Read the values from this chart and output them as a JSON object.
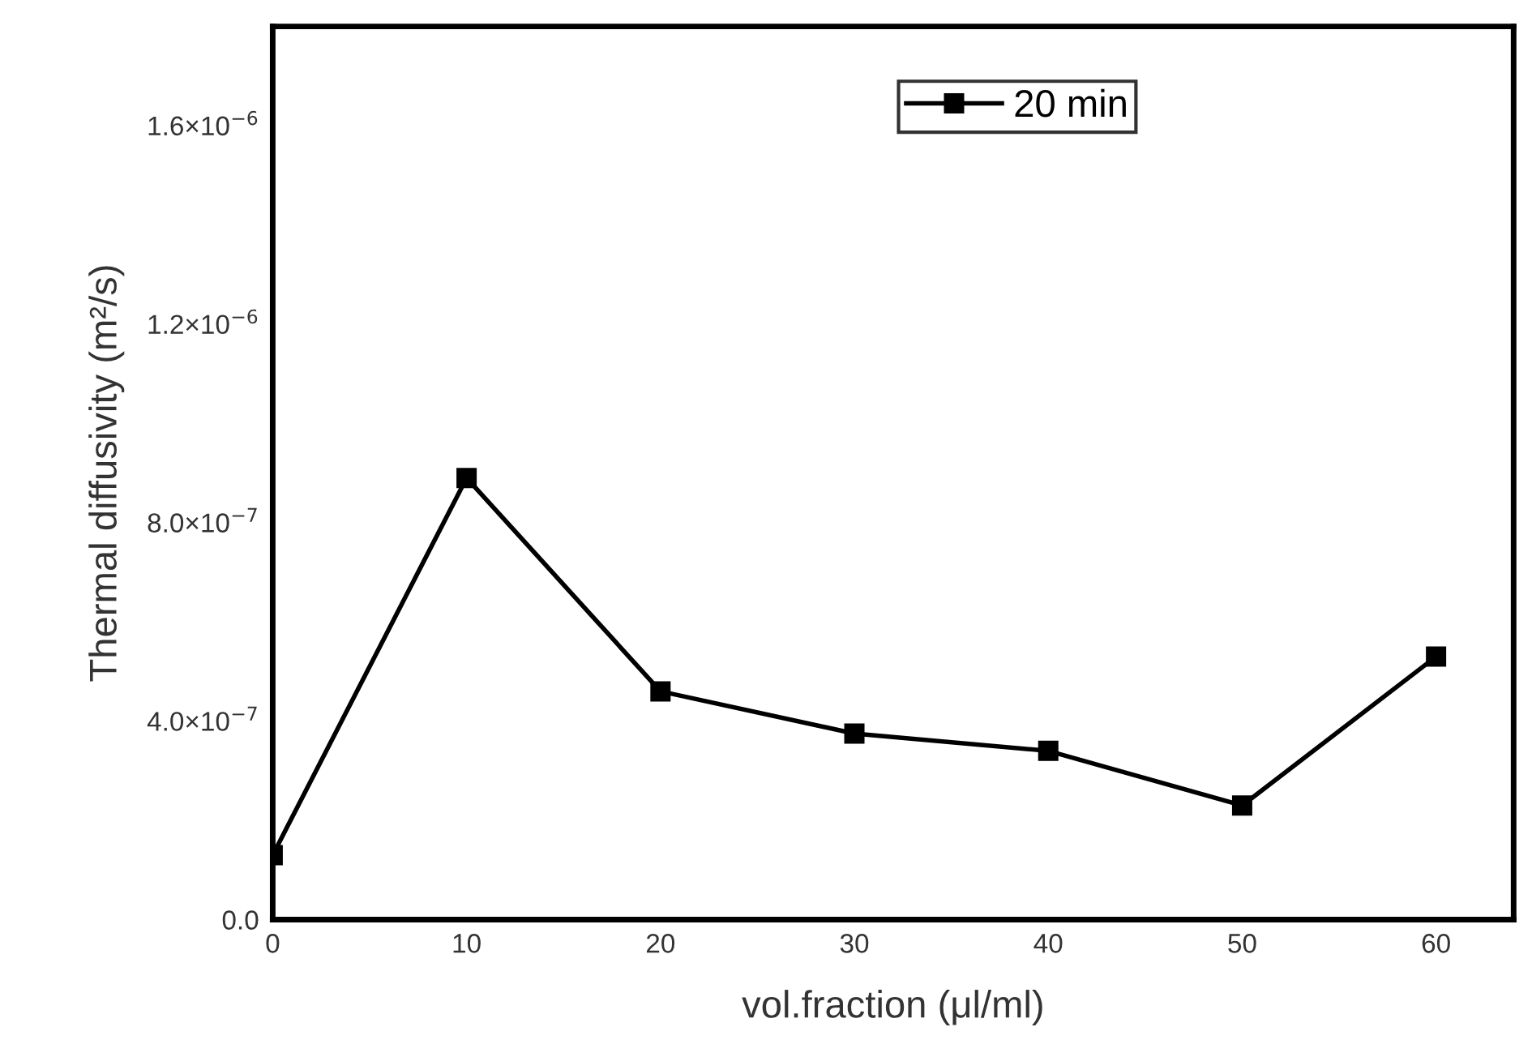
{
  "chart_data": {
    "type": "line",
    "xlabel": "vol.fraction (μl/ml)",
    "ylabel": "Thermal diffusivity (m²/s)",
    "x": [
      0,
      10,
      20,
      30,
      40,
      50,
      60
    ],
    "series": [
      {
        "name": "20 min",
        "color": "#000000",
        "values": [
          1.3e-07,
          8.9e-07,
          4.6e-07,
          3.75e-07,
          3.4e-07,
          2.3e-07,
          5.3e-07
        ]
      }
    ],
    "xlim": [
      0,
      64
    ],
    "xticks": [
      0,
      10,
      20,
      30,
      40,
      50,
      60
    ],
    "ylim": [
      0,
      1.8e-06
    ],
    "yticks": [
      {
        "value": 0,
        "label": "0.0"
      },
      {
        "value": 4e-07,
        "label": "4.0×10$^{−7}$"
      },
      {
        "value": 8e-07,
        "label": "8.0×10$^{−7}$"
      },
      {
        "value": 1.2e-06,
        "label": "1.2×10$^{−6}$"
      },
      {
        "value": 1.6e-06,
        "label": "1.6×10$^{−6}$"
      }
    ],
    "marker": "square",
    "line_style": "solid",
    "legend": "top",
    "grid": false
  }
}
